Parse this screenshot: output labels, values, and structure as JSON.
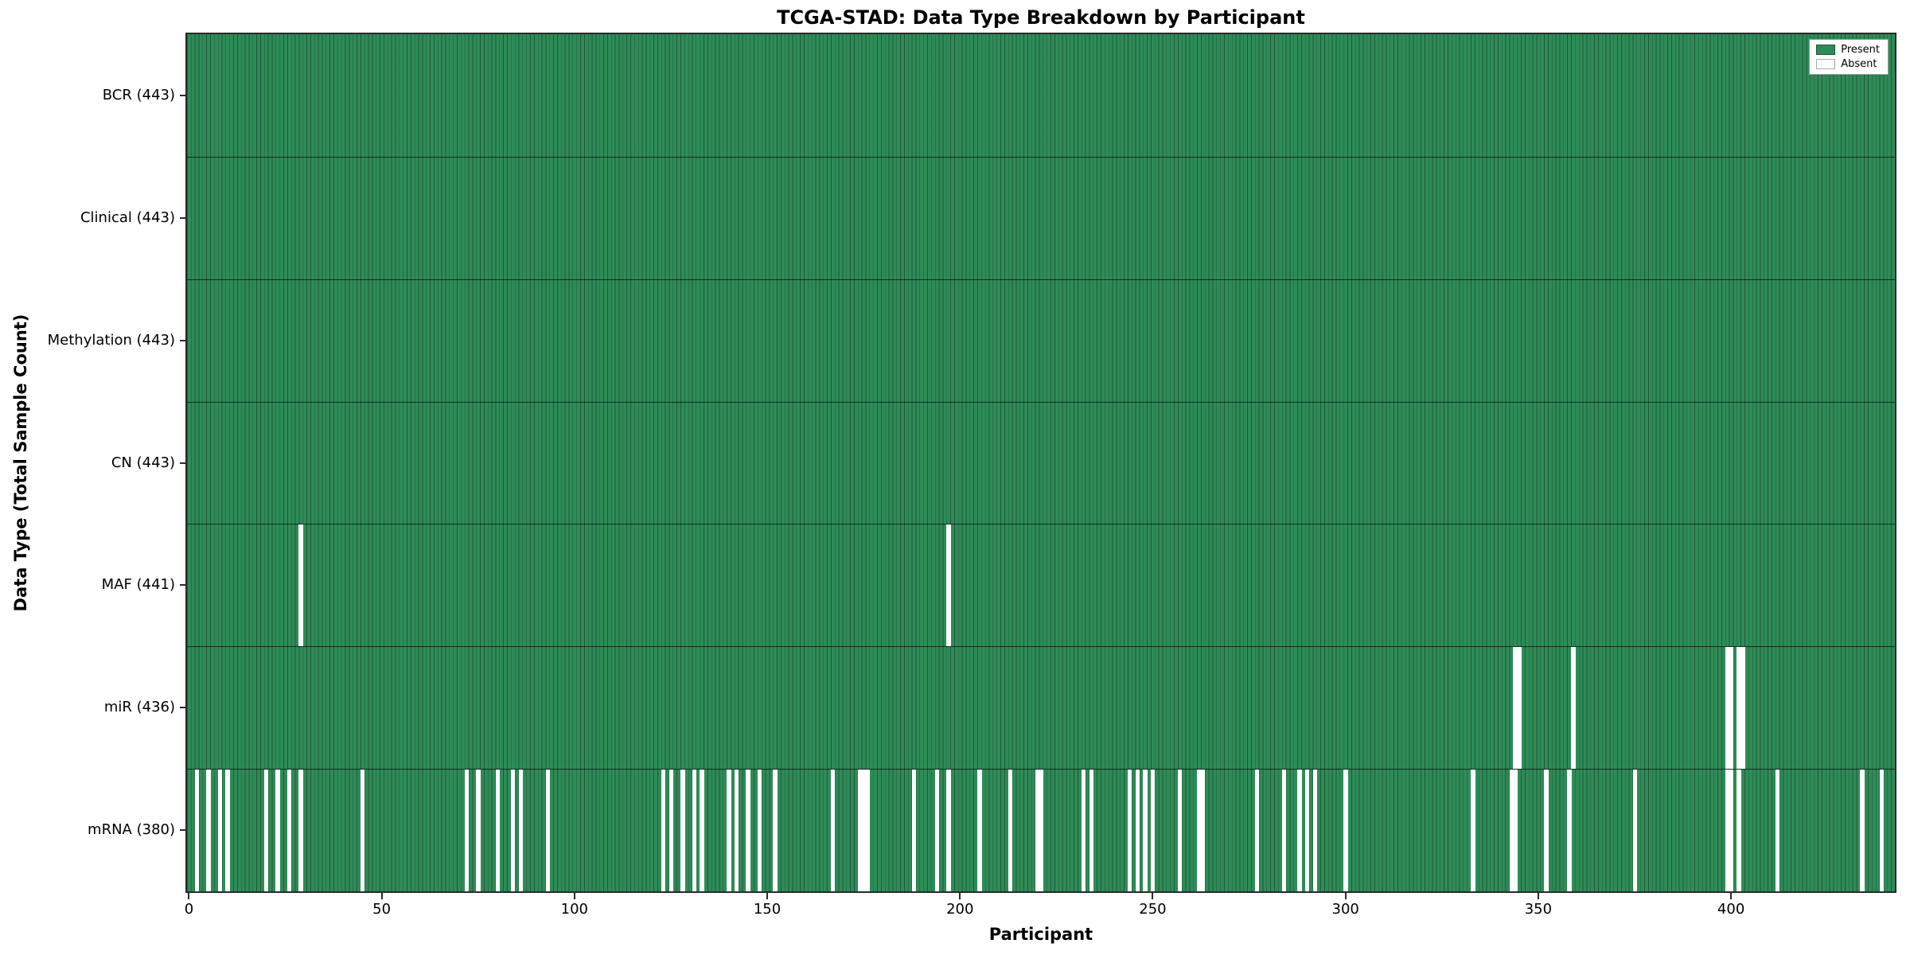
{
  "chart_data": {
    "type": "heatmap",
    "title": "TCGA-STAD: Data Type Breakdown by Participant",
    "xlabel": "Participant",
    "ylabel": "Data Type (Total Sample Count)",
    "legend": [
      "Present",
      "Absent"
    ],
    "colors": {
      "present": "#2e8b57",
      "absent": "#ffffff",
      "bar_edge_alpha": "rgba(0,0,0,0.35)"
    },
    "n_participants": 443,
    "x_ticks": [
      0,
      50,
      100,
      150,
      200,
      250,
      300,
      350,
      400
    ],
    "rows": [
      {
        "name": "BCR",
        "count": 443,
        "label": "BCR (443)",
        "absent": []
      },
      {
        "name": "Clinical",
        "count": 443,
        "label": "Clinical (443)",
        "absent": []
      },
      {
        "name": "Methylation",
        "count": 443,
        "label": "Methylation (443)",
        "absent": []
      },
      {
        "name": "CN",
        "count": 443,
        "label": "CN (443)",
        "absent": []
      },
      {
        "name": "MAF",
        "count": 441,
        "label": "MAF (441)",
        "absent": [
          29,
          197
        ]
      },
      {
        "name": "miR",
        "count": 436,
        "label": "miR (436)",
        "absent": [
          344,
          345,
          359,
          399,
          400,
          402,
          403
        ]
      },
      {
        "name": "mRNA",
        "count": 380,
        "label": "mRNA (380)",
        "absent": [
          2,
          5,
          8,
          10,
          20,
          23,
          26,
          29,
          45,
          72,
          75,
          80,
          84,
          86,
          93,
          123,
          125,
          128,
          131,
          133,
          140,
          142,
          145,
          148,
          152,
          167,
          174,
          175,
          176,
          188,
          194,
          197,
          205,
          213,
          220,
          221,
          232,
          234,
          244,
          246,
          248,
          250,
          257,
          262,
          263,
          277,
          284,
          288,
          290,
          292,
          300,
          333,
          343,
          344,
          352,
          358,
          375,
          399,
          400,
          402,
          412,
          434,
          439
        ]
      }
    ]
  }
}
